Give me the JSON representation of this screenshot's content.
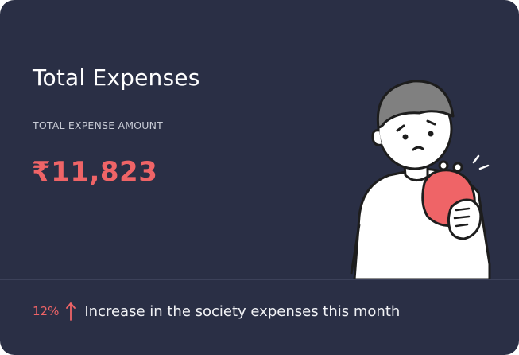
{
  "card": {
    "title": "Total Expenses",
    "subtitle": "TOTAL EXPENSE AMOUNT",
    "amount": "₹11,823",
    "change_percent": "12%",
    "change_direction": "up",
    "change_text": "Increase in the society expenses this month",
    "illustration": "worried-person-holding-empty-wallet-icon"
  },
  "colors": {
    "background": "#2a2f45",
    "accent": "#ef6467",
    "text": "#ffffff"
  }
}
